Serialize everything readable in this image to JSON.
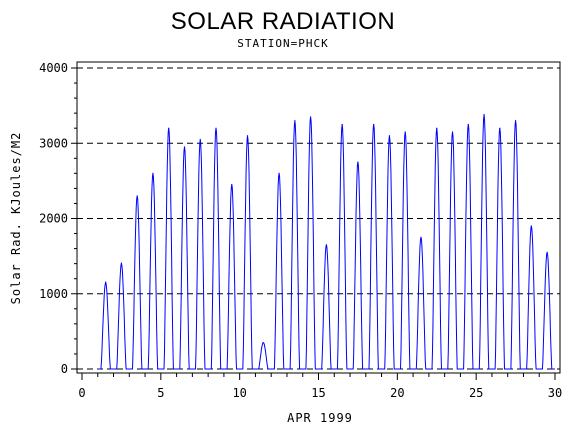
{
  "chart_data": {
    "type": "line",
    "title": "SOLAR RADIATION",
    "subtitle": "STATION=PHCK",
    "xlabel": "APR 1999",
    "ylabel": "Solar Rad. KJoules/M2",
    "xlim": [
      0,
      30
    ],
    "ylim": [
      0,
      4000
    ],
    "x_ticks": [
      0,
      5,
      10,
      15,
      20,
      25,
      30
    ],
    "x_tick_labels": [
      "0",
      "5",
      "10",
      "15",
      "20",
      "25",
      "30"
    ],
    "y_ticks": [
      0,
      1000,
      2000,
      3000,
      4000
    ],
    "y_tick_labels": [
      "0",
      "1000",
      "2000",
      "3000",
      "4000"
    ],
    "grid": "horizontal dashed at y ticks",
    "series": [
      {
        "color": "#0000ff",
        "daily_peaks": [
          {
            "day": 1,
            "peak": 1150
          },
          {
            "day": 2,
            "peak": 1400
          },
          {
            "day": 3,
            "peak": 2300
          },
          {
            "day": 4,
            "peak": 2600
          },
          {
            "day": 5,
            "peak": 3200
          },
          {
            "day": 6,
            "peak": 2950
          },
          {
            "day": 7,
            "peak": 3050
          },
          {
            "day": 8,
            "peak": 3200
          },
          {
            "day": 9,
            "peak": 2450
          },
          {
            "day": 10,
            "peak": 3100
          },
          {
            "day": 11,
            "peak": 350
          },
          {
            "day": 12,
            "peak": 2600
          },
          {
            "day": 13,
            "peak": 3300
          },
          {
            "day": 14,
            "peak": 3350
          },
          {
            "day": 15,
            "peak": 1650
          },
          {
            "day": 16,
            "peak": 3250
          },
          {
            "day": 17,
            "peak": 2750
          },
          {
            "day": 18,
            "peak": 3250
          },
          {
            "day": 19,
            "peak": 3100
          },
          {
            "day": 20,
            "peak": 3150
          },
          {
            "day": 21,
            "peak": 1750
          },
          {
            "day": 22,
            "peak": 3200
          },
          {
            "day": 23,
            "peak": 3150
          },
          {
            "day": 24,
            "peak": 3250
          },
          {
            "day": 25,
            "peak": 3380
          },
          {
            "day": 26,
            "peak": 3200
          },
          {
            "day": 27,
            "peak": 3300
          },
          {
            "day": 28,
            "peak": 1900
          },
          {
            "day": 29,
            "peak": 1550
          }
        ]
      }
    ]
  }
}
